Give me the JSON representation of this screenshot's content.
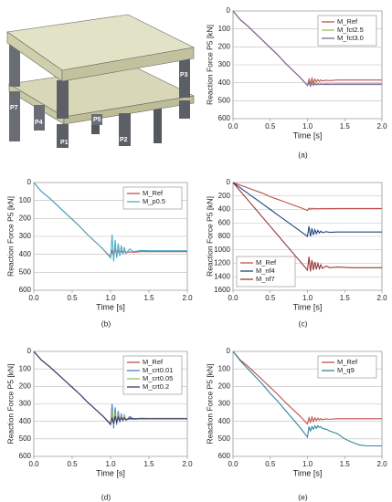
{
  "diagram": {
    "labels": [
      "P1",
      "P2",
      "P3",
      "P4",
      "P5",
      "P7"
    ]
  },
  "chart_data": [
    {
      "type": "line",
      "caption": "(a)",
      "x_label": "Time [s]",
      "y_label": "Reaction Force P5 [kN]",
      "x": [
        0,
        0.1,
        0.2,
        0.3,
        0.4,
        0.5,
        0.6,
        0.7,
        0.8,
        0.9,
        1.0,
        1.02,
        1.04,
        1.06,
        1.08,
        1.1,
        1.12,
        1.14,
        1.16,
        1.18,
        1.2,
        1.25,
        1.3,
        1.4,
        1.5,
        1.6,
        1.7,
        1.8,
        1.9,
        2.0
      ],
      "series": [
        {
          "name": "M_Ref",
          "color": "#c0504d",
          "values": [
            0,
            50,
            85,
            125,
            165,
            205,
            245,
            290,
            330,
            370,
            415,
            380,
            405,
            375,
            400,
            380,
            395,
            382,
            392,
            384,
            390,
            386,
            388,
            385,
            385,
            385,
            385,
            385,
            385,
            385
          ]
        },
        {
          "name": "M_fct2.5",
          "color": "#9bbb59",
          "values": [
            0,
            50,
            85,
            125,
            165,
            205,
            245,
            290,
            330,
            370,
            415,
            395,
            415,
            395,
            412,
            400,
            410,
            402,
            408,
            404,
            407,
            405,
            406,
            405,
            405,
            405,
            405,
            405,
            405,
            405
          ]
        },
        {
          "name": "M_fct3.0",
          "color": "#8064a2",
          "values": [
            0,
            50,
            85,
            125,
            165,
            205,
            245,
            290,
            330,
            370,
            415,
            400,
            420,
            400,
            415,
            405,
            413,
            407,
            411,
            408,
            410,
            409,
            410,
            410,
            410,
            410,
            410,
            410,
            410,
            410
          ]
        }
      ],
      "xlim": [
        0,
        2
      ],
      "ylim": [
        600,
        0
      ],
      "xticks": [
        {
          "value": 0,
          "label": "0.0"
        },
        0.5,
        {
          "value": 1,
          "label": "1.0"
        },
        1.5,
        {
          "value": 2,
          "label": "2.0"
        }
      ],
      "yticks": [
        0,
        100,
        200,
        300,
        400,
        500,
        600
      ],
      "grid": true,
      "legend": "upper right"
    },
    {
      "type": "line",
      "caption": "(b)",
      "x_label": "Time [s]",
      "y_label": "Reaction Force P5 [kN]",
      "x": [
        0,
        0.1,
        0.2,
        0.3,
        0.4,
        0.5,
        0.6,
        0.7,
        0.8,
        0.9,
        1.0,
        1.02,
        1.04,
        1.06,
        1.08,
        1.1,
        1.12,
        1.14,
        1.16,
        1.18,
        1.2,
        1.25,
        1.3,
        1.4,
        1.5,
        1.6,
        1.7,
        1.8,
        1.9,
        2.0
      ],
      "series": [
        {
          "name": "M_Ref",
          "color": "#c0504d",
          "values": [
            0,
            50,
            85,
            125,
            165,
            205,
            245,
            290,
            330,
            370,
            415,
            380,
            405,
            375,
            400,
            380,
            395,
            382,
            392,
            384,
            390,
            386,
            388,
            385,
            385,
            385,
            385,
            385,
            385,
            385
          ]
        },
        {
          "name": "M_p0.5",
          "color": "#4bacc6",
          "values": [
            0,
            50,
            85,
            125,
            165,
            205,
            245,
            290,
            330,
            370,
            420,
            290,
            440,
            320,
            420,
            340,
            410,
            350,
            400,
            360,
            395,
            370,
            385,
            378,
            380,
            380,
            380,
            380,
            380,
            380
          ]
        }
      ],
      "xlim": [
        0,
        2
      ],
      "ylim": [
        600,
        0
      ],
      "xticks": [
        {
          "value": 0,
          "label": "0.0"
        },
        0.5,
        {
          "value": 1,
          "label": "1.0"
        },
        1.5,
        {
          "value": 2,
          "label": "2.0"
        }
      ],
      "yticks": [
        0,
        100,
        200,
        300,
        400,
        500,
        600
      ],
      "grid": true,
      "legend": "upper right"
    },
    {
      "type": "line",
      "caption": "(c)",
      "x_label": "Time [s]",
      "y_label": "Reaction Force P5 [kN]",
      "x": [
        0,
        0.1,
        0.2,
        0.3,
        0.4,
        0.5,
        0.6,
        0.7,
        0.8,
        0.9,
        1.0,
        1.02,
        1.04,
        1.06,
        1.08,
        1.1,
        1.12,
        1.14,
        1.16,
        1.18,
        1.2,
        1.25,
        1.3,
        1.4,
        1.5,
        1.6,
        1.7,
        1.8,
        1.9,
        2.0
      ],
      "series": [
        {
          "name": "M_Ref",
          "color": "#c0504d",
          "values": [
            0,
            40,
            80,
            120,
            160,
            210,
            250,
            290,
            330,
            370,
            415,
            380,
            400,
            380,
            395,
            385,
            392,
            385,
            390,
            386,
            388,
            386,
            387,
            386,
            386,
            386,
            386,
            386,
            386,
            386
          ]
        },
        {
          "name": "M_nf4",
          "color": "#1f497d",
          "values": [
            0,
            80,
            160,
            240,
            320,
            400,
            480,
            560,
            640,
            720,
            800,
            650,
            800,
            680,
            780,
            700,
            760,
            710,
            750,
            720,
            745,
            730,
            740,
            735,
            735,
            735,
            735,
            735,
            735,
            735
          ]
        },
        {
          "name": "M_nf7",
          "color": "#953735",
          "values": [
            0,
            130,
            260,
            390,
            520,
            650,
            780,
            910,
            1040,
            1170,
            1300,
            1100,
            1320,
            1150,
            1300,
            1180,
            1290,
            1200,
            1280,
            1220,
            1275,
            1240,
            1265,
            1255,
            1260,
            1265,
            1265,
            1265,
            1265,
            1265
          ]
        }
      ],
      "xlim": [
        0,
        2
      ],
      "ylim": [
        1600,
        0
      ],
      "xticks": [
        {
          "value": 0,
          "label": "0.0"
        },
        0.5,
        {
          "value": 1,
          "label": "1.0"
        },
        1.5,
        {
          "value": 2,
          "label": "2.0"
        }
      ],
      "yticks": [
        0,
        200,
        400,
        600,
        800,
        1000,
        1200,
        1400,
        1600
      ],
      "grid": true,
      "legend": "lower left"
    },
    {
      "type": "line",
      "caption": "(d)",
      "x_label": "Time [s]",
      "y_label": "Reaction Force P5 [kN]",
      "x": [
        0,
        0.1,
        0.2,
        0.3,
        0.4,
        0.5,
        0.6,
        0.7,
        0.8,
        0.9,
        1.0,
        1.02,
        1.04,
        1.06,
        1.08,
        1.1,
        1.12,
        1.14,
        1.16,
        1.18,
        1.2,
        1.25,
        1.3,
        1.4,
        1.5,
        1.6,
        1.7,
        1.8,
        1.9,
        2.0
      ],
      "series": [
        {
          "name": "M_Ref",
          "color": "#c0504d",
          "values": [
            0,
            50,
            85,
            125,
            165,
            205,
            245,
            290,
            330,
            370,
            415,
            380,
            405,
            375,
            400,
            380,
            395,
            382,
            392,
            384,
            390,
            386,
            388,
            385,
            385,
            385,
            385,
            385,
            385,
            385
          ]
        },
        {
          "name": "M_crt0.01",
          "color": "#4f81bd",
          "values": [
            0,
            50,
            85,
            125,
            165,
            205,
            245,
            290,
            330,
            370,
            420,
            300,
            440,
            320,
            420,
            340,
            405,
            355,
            400,
            365,
            395,
            372,
            385,
            382,
            383,
            383,
            383,
            383,
            383,
            383
          ]
        },
        {
          "name": "M_crt0.05",
          "color": "#9bbb59",
          "values": [
            0,
            50,
            85,
            125,
            165,
            205,
            245,
            290,
            330,
            370,
            418,
            340,
            425,
            350,
            410,
            360,
            400,
            368,
            395,
            372,
            392,
            378,
            386,
            384,
            384,
            384,
            384,
            384,
            384,
            384
          ]
        },
        {
          "name": "M_crt0.2",
          "color": "#403a7a",
          "values": [
            0,
            50,
            85,
            125,
            165,
            205,
            245,
            290,
            330,
            370,
            416,
            380,
            415,
            370,
            405,
            375,
            398,
            378,
            393,
            380,
            391,
            382,
            386,
            385,
            385,
            385,
            385,
            385,
            385,
            385
          ]
        }
      ],
      "xlim": [
        0,
        2
      ],
      "ylim": [
        600,
        0
      ],
      "xticks": [
        {
          "value": 0,
          "label": "0.0"
        },
        0.5,
        {
          "value": 1,
          "label": "1.0"
        },
        1.5,
        {
          "value": 2,
          "label": "2.0"
        }
      ],
      "yticks": [
        0,
        100,
        200,
        300,
        400,
        500,
        600
      ],
      "grid": true,
      "legend": "upper right"
    },
    {
      "type": "line",
      "caption": "(e)",
      "x_label": "Time [s]",
      "y_label": "Reaction Force P5 [kN]",
      "x": [
        0,
        0.1,
        0.2,
        0.3,
        0.4,
        0.5,
        0.6,
        0.7,
        0.8,
        0.9,
        1.0,
        1.02,
        1.04,
        1.06,
        1.08,
        1.1,
        1.12,
        1.14,
        1.16,
        1.18,
        1.2,
        1.25,
        1.3,
        1.4,
        1.5,
        1.6,
        1.7,
        1.8,
        1.9,
        2.0
      ],
      "series": [
        {
          "name": "M_Ref",
          "color": "#c0504d",
          "values": [
            0,
            50,
            85,
            125,
            165,
            205,
            245,
            290,
            330,
            370,
            415,
            380,
            405,
            375,
            400,
            380,
            395,
            382,
            392,
            384,
            390,
            386,
            388,
            385,
            385,
            385,
            385,
            385,
            385,
            385
          ]
        },
        {
          "name": "M_q9",
          "color": "#31859c",
          "values": [
            0,
            55,
            100,
            145,
            190,
            240,
            285,
            335,
            385,
            435,
            490,
            430,
            455,
            430,
            445,
            425,
            440,
            425,
            435,
            430,
            440,
            445,
            455,
            470,
            500,
            520,
            535,
            540,
            540,
            540
          ]
        }
      ],
      "xlim": [
        0,
        2
      ],
      "ylim": [
        600,
        0
      ],
      "xticks": [
        {
          "value": 0,
          "label": "0.0"
        },
        0.5,
        {
          "value": 1,
          "label": "1.0"
        },
        1.5,
        {
          "value": 2,
          "label": "2.0"
        }
      ],
      "yticks": [
        0,
        100,
        200,
        300,
        400,
        500,
        600
      ],
      "grid": true,
      "legend": "upper right"
    }
  ]
}
